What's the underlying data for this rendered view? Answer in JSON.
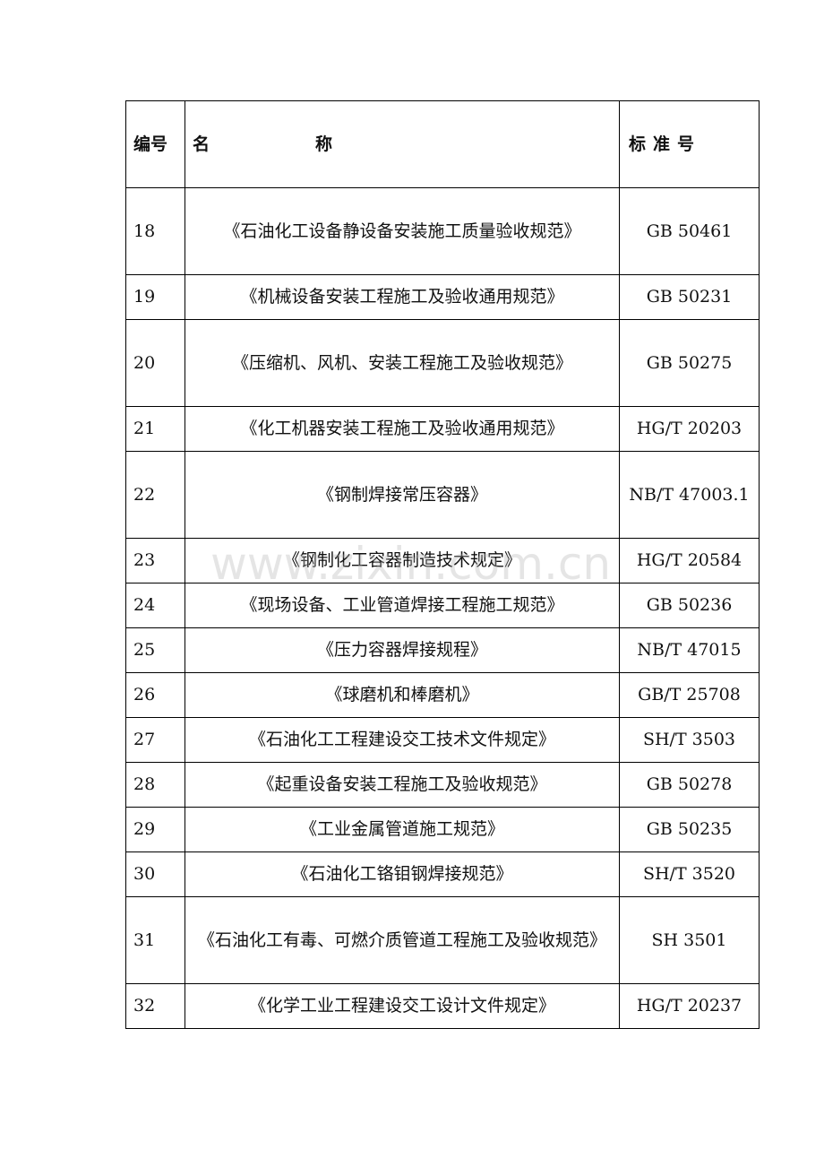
{
  "header": {
    "number": "编号",
    "name_a": "名",
    "name_b": "称",
    "standard": "标准号"
  },
  "rows": [
    {
      "no": "18",
      "name": "《石油化工设备静设备安装施工质量验收规范》",
      "std": "GB 50461",
      "tall": true
    },
    {
      "no": "19",
      "name": "《机械设备安装工程施工及验收通用规范》",
      "std": "GB 50231"
    },
    {
      "no": "20",
      "name": "《压缩机、风机、安装工程施工及验收规范》",
      "std": "GB 50275",
      "tall": true
    },
    {
      "no": "21",
      "name": "《化工机器安装工程施工及验收通用规范》",
      "std": "HG/T 20203"
    },
    {
      "no": "22",
      "name": "《钢制焊接常压容器》",
      "std": "NB/T 47003.1",
      "tall": true
    },
    {
      "no": "23",
      "name": "《钢制化工容器制造技术规定》",
      "std": "HG/T 20584"
    },
    {
      "no": "24",
      "name": "《现场设备、工业管道焊接工程施工规范》",
      "std": "GB 50236"
    },
    {
      "no": "25",
      "name": "《压力容器焊接规程》",
      "std": "NB/T 47015"
    },
    {
      "no": "26",
      "name": "《球磨机和棒磨机》",
      "std": "GB/T 25708"
    },
    {
      "no": "27",
      "name": "《石油化工工程建设交工技术文件规定》",
      "std": "SH/T 3503"
    },
    {
      "no": "28",
      "name": "《起重设备安装工程施工及验收规范》",
      "std": "GB 50278"
    },
    {
      "no": "29",
      "name": "《工业金属管道施工规范》",
      "std": "GB 50235"
    },
    {
      "no": "30",
      "name": "《石油化工铬钼钢焊接规范》",
      "std": "SH/T 3520"
    },
    {
      "no": "31",
      "name": "《石油化工有毒、可燃介质管道工程施工及验收规范》",
      "std": "SH 3501",
      "tall": true
    },
    {
      "no": "32",
      "name": "《化学工业工程建设交工设计文件规定》",
      "std": "HG/T 20237"
    }
  ],
  "watermark": "www.zixin.com.cn"
}
